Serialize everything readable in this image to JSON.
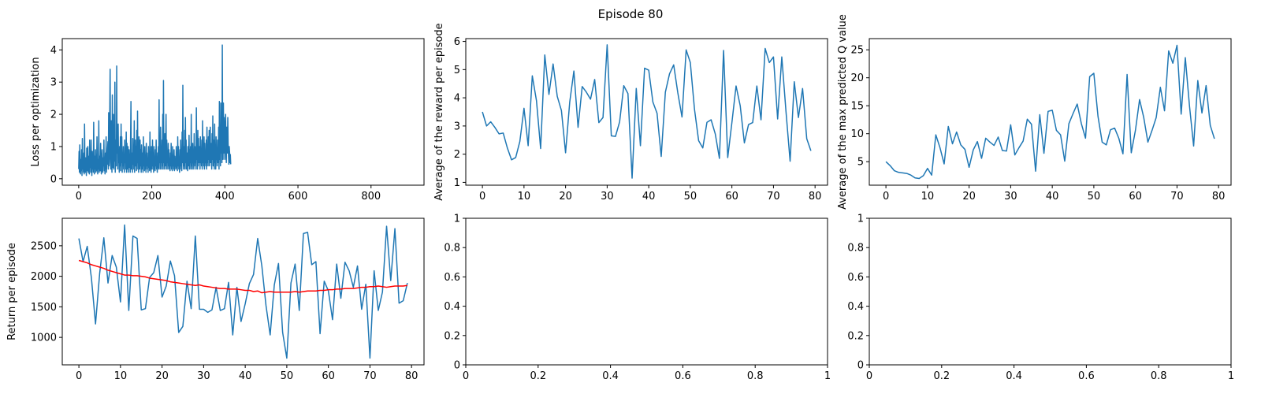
{
  "figure": {
    "suptitle": "Episode 80"
  },
  "colors": {
    "line": "#1f77b4",
    "mean": "#ff0000",
    "axis": "#000000"
  },
  "chart_data": [
    {
      "id": "loss",
      "type": "line",
      "title": "",
      "xlabel": "",
      "ylabel": "Loss per optimization",
      "xlim": [
        -45,
        945
      ],
      "ylim": [
        -0.2,
        4.35
      ],
      "xticks": [
        0,
        200,
        400,
        600,
        800
      ],
      "yticks": [
        0,
        1,
        2,
        3,
        4
      ],
      "grid": false,
      "series": [
        {
          "values": [
            0.3,
            0.85,
            0.2,
            1.05,
            0.4,
            0.15,
            0.6,
            0.25,
            0.9,
            0.1,
            1.25,
            0.3,
            0.55,
            0.2,
            0.8,
            0.15,
            1.7,
            0.4,
            0.2,
            0.65,
            0.3,
            0.1,
            0.95,
            0.25,
            0.5,
            1.0,
            0.2,
            0.7,
            0.3,
            0.15,
            1.2,
            0.35,
            0.6,
            0.2,
            1.2,
            0.4,
            0.1,
            0.85,
            0.3,
            0.55,
            0.2,
            1.75,
            0.45,
            0.15,
            0.7,
            0.3,
            0.9,
            0.2,
            0.5,
            0.25,
            1.3,
            0.4,
            0.15,
            0.6,
            0.3,
            1.8,
            0.2,
            0.45,
            0.7,
            0.25,
            1.1,
            0.35,
            0.15,
            0.55,
            0.9,
            0.3,
            0.2,
            0.65,
            0.4,
            1.2,
            0.25,
            0.5,
            0.15,
            0.8,
            0.3,
            1.3,
            0.2,
            0.6,
            0.45,
            0.95,
            1.15,
            0.3,
            2.05,
            0.4,
            0.7,
            2.05,
            3.4,
            0.5,
            0.3,
            1.8,
            0.6,
            0.2,
            2.6,
            0.35,
            0.8,
            2.0,
            0.3,
            1.45,
            0.55,
            3.0,
            0.2,
            0.7,
            1.2,
            0.4,
            3.5,
            0.8,
            1.6,
            0.3,
            1.7,
            0.5,
            0.9,
            0.2,
            1.0,
            0.4,
            1.3,
            0.25,
            1.7,
            0.5,
            1.3,
            0.2,
            0.8,
            0.4,
            1.0,
            0.3,
            0.7,
            0.2,
            1.2,
            0.5,
            0.9,
            0.3,
            1.45,
            0.2,
            1.1,
            0.6,
            0.3,
            1.0,
            0.2,
            0.7,
            0.9,
            0.35,
            0.5,
            0.2,
            1.3,
            2.4,
            0.3,
            0.8,
            0.6,
            0.2,
            1.25,
            0.45,
            0.9,
            0.3,
            1.8,
            0.2,
            0.7,
            1.2,
            0.4,
            1.0,
            0.25,
            1.5,
            0.3,
            2.1,
            0.5,
            0.8,
            0.2,
            1.3,
            0.6,
            0.3,
            1.2,
            0.4,
            0.9,
            0.2,
            1.05,
            0.5,
            0.3,
            0.8,
            0.2,
            1.3,
            0.4,
            0.7,
            0.25,
            1.0,
            0.3,
            0.6,
            0.2,
            1.1,
            0.4,
            0.8,
            0.3,
            0.5,
            0.2,
            1.0,
            0.35,
            0.7,
            0.25,
            1.45,
            0.3,
            0.6,
            0.2,
            1.0,
            0.5,
            0.3,
            1.2,
            0.4,
            0.8,
            0.2,
            1.0,
            0.3,
            0.6,
            0.25,
            0.9,
            0.4,
            1.2,
            0.3,
            0.5,
            0.2,
            0.8,
            0.35,
            1.0,
            0.3,
            2.45,
            0.5,
            0.8,
            0.3,
            1.6,
            0.5,
            1.0,
            0.3,
            1.2,
            0.4,
            2.0,
            0.3,
            3.05,
            0.5,
            1.0,
            0.3,
            1.4,
            0.4,
            0.8,
            2.0,
            0.3,
            1.2,
            0.5,
            0.8,
            0.3,
            1.1,
            0.4,
            0.9,
            0.3,
            0.6,
            0.25,
            0.8,
            0.4,
            1.1,
            0.3,
            0.7,
            0.25,
            1.0,
            0.4,
            0.6,
            0.3,
            0.9,
            0.25,
            0.7,
            0.4,
            0.5,
            0.3,
            1.0,
            0.35,
            0.6,
            0.25,
            1.3,
            0.4,
            1.0,
            0.3,
            0.5,
            0.2,
            0.9,
            0.3,
            1.2,
            0.4,
            0.7,
            0.25,
            1.45,
            0.5,
            2.9,
            0.6,
            0.3,
            1.0,
            0.4,
            1.5,
            0.3,
            1.9,
            0.5,
            1.2,
            0.3,
            0.8,
            0.6,
            0.25,
            1.0,
            0.4,
            0.7,
            1.35,
            0.3,
            0.9,
            0.5,
            1.0,
            0.3,
            2.0,
            0.4,
            0.8,
            0.3,
            1.1,
            0.5,
            0.7,
            0.3,
            1.4,
            0.4,
            1.0,
            0.5,
            0.8,
            0.3,
            2.2,
            0.6,
            1.0,
            0.3,
            1.5,
            0.4,
            1.25,
            0.5,
            0.8,
            1.0,
            0.3,
            1.3,
            0.5,
            0.9,
            0.4,
            1.2,
            0.3,
            1.8,
            0.5,
            1.0,
            0.4,
            1.3,
            0.3,
            1.1,
            0.5,
            0.8,
            0.4,
            1.2,
            0.3,
            1.6,
            0.5,
            0.9,
            0.4,
            1.3,
            0.6,
            1.5,
            0.4,
            0.9,
            1.6,
            0.5,
            1.1,
            0.8,
            0.3,
            1.4,
            0.6,
            1.95,
            0.4,
            1.2,
            0.7,
            0.3,
            1.7,
            0.5,
            1.0,
            0.3,
            1.3,
            0.6,
            0.9,
            0.4,
            1.2,
            0.8,
            0.5,
            1.6,
            0.3,
            2.4,
            0.6,
            1.0,
            0.4,
            2.35,
            0.8,
            1.6,
            0.5,
            4.15,
            1.0,
            0.6,
            2.35,
            0.8,
            1.9,
            1.2,
            0.6,
            1.6,
            2.0,
            1.1,
            0.5,
            1.6,
            1.0,
            0.8,
            1.9,
            1.1,
            0.7,
            0.45,
            1.0,
            0.8,
            0.5,
            0.75,
            0.45
          ]
        }
      ]
    },
    {
      "id": "avg_reward",
      "type": "line",
      "title": "",
      "xlabel": "",
      "ylabel": "Average of the reward per episode",
      "xlim": [
        -4,
        83
      ],
      "ylim": [
        0.9,
        6.1
      ],
      "xticks": [
        0,
        10,
        20,
        30,
        40,
        50,
        60,
        70,
        80
      ],
      "yticks": [
        1,
        2,
        3,
        4,
        5,
        6
      ],
      "grid": false,
      "series": [
        {
          "values": [
            3.5,
            3.0,
            3.15,
            2.95,
            2.72,
            2.75,
            2.22,
            1.8,
            1.88,
            2.45,
            3.63,
            2.3,
            4.78,
            3.9,
            2.2,
            5.52,
            4.12,
            5.2,
            4.05,
            3.55,
            2.05,
            3.85,
            4.95,
            2.95,
            4.4,
            4.2,
            3.95,
            4.65,
            3.12,
            3.3,
            5.88,
            2.65,
            2.63,
            3.15,
            4.43,
            4.15,
            1.15,
            4.33,
            2.3,
            5.05,
            4.98,
            3.85,
            3.45,
            1.92,
            4.2,
            4.85,
            5.17,
            4.17,
            3.32,
            5.7,
            5.25,
            3.6,
            2.48,
            2.22,
            3.13,
            3.22,
            2.72,
            1.85,
            5.68,
            1.88,
            3.12,
            4.42,
            3.72,
            2.4,
            3.05,
            3.12,
            4.42,
            3.22,
            5.75,
            5.25,
            5.45,
            3.25,
            5.45,
            3.53,
            1.75,
            4.57,
            3.3,
            4.33,
            2.55,
            2.12
          ]
        }
      ]
    },
    {
      "id": "max_q",
      "type": "line",
      "title": "",
      "xlabel": "",
      "ylabel": "Average of the max predicted Q value",
      "xlim": [
        -4,
        83
      ],
      "ylim": [
        0.8,
        27
      ],
      "xticks": [
        0,
        10,
        20,
        30,
        40,
        50,
        60,
        70,
        80
      ],
      "yticks": [
        5,
        10,
        15,
        20,
        25
      ],
      "grid": false,
      "series": [
        {
          "values": [
            5.0,
            4.3,
            3.4,
            3.1,
            3.0,
            2.9,
            2.6,
            2.1,
            2.0,
            2.5,
            3.8,
            2.6,
            9.8,
            7.5,
            4.6,
            11.3,
            8.2,
            10.3,
            8.0,
            7.2,
            4.0,
            7.1,
            8.6,
            5.6,
            9.2,
            8.5,
            7.9,
            9.4,
            7.0,
            6.9,
            11.6,
            6.2,
            7.5,
            8.7,
            12.6,
            11.7,
            3.3,
            13.4,
            6.5,
            14.0,
            14.2,
            10.6,
            9.8,
            5.1,
            11.8,
            13.6,
            15.3,
            11.8,
            9.2,
            20.2,
            20.8,
            13.1,
            8.5,
            8.0,
            10.7,
            11.0,
            9.2,
            6.4,
            20.6,
            6.6,
            10.6,
            16.1,
            12.9,
            8.5,
            10.6,
            12.9,
            18.3,
            14.1,
            24.8,
            22.6,
            25.8,
            13.5,
            23.6,
            15.0,
            7.8,
            19.5,
            13.7,
            18.6,
            11.5,
            9.1
          ]
        }
      ]
    },
    {
      "id": "return",
      "type": "line",
      "title": "",
      "xlabel": "",
      "ylabel": "Return per episode",
      "xlim": [
        -4,
        83
      ],
      "ylim": [
        550,
        2950
      ],
      "xticks": [
        0,
        10,
        20,
        30,
        40,
        50,
        60,
        70,
        80
      ],
      "yticks": [
        1000,
        1500,
        2000,
        2500
      ],
      "grid": false,
      "series": [
        {
          "values": [
            2620,
            2240,
            2490,
            1980,
            1220,
            2050,
            2630,
            1890,
            2340,
            2150,
            1580,
            2840,
            1440,
            2660,
            2620,
            1450,
            1470,
            1980,
            2060,
            2340,
            1660,
            1840,
            2250,
            2010,
            1080,
            1180,
            1920,
            1470,
            2660,
            1460,
            1460,
            1410,
            1450,
            1820,
            1440,
            1470,
            1900,
            1040,
            1820,
            1260,
            1550,
            1880,
            2030,
            2620,
            2170,
            1520,
            1040,
            1860,
            2210,
            1080,
            660,
            1890,
            2200,
            1440,
            2700,
            2720,
            2190,
            2240,
            1060,
            1920,
            1760,
            1290,
            2200,
            1640,
            2230,
            2090,
            1820,
            2170,
            1460,
            1870,
            660,
            2090,
            1440,
            1740,
            2820,
            1930,
            2780,
            1560,
            1600,
            1890
          ]
        },
        {
          "values": [
            2260,
            2240,
            2220,
            2190,
            2170,
            2150,
            2130,
            2100,
            2080,
            2060,
            2040,
            2020,
            2020,
            2010,
            2010,
            2000,
            1990,
            1970,
            1960,
            1950,
            1940,
            1930,
            1910,
            1900,
            1890,
            1880,
            1870,
            1860,
            1850,
            1860,
            1840,
            1830,
            1820,
            1810,
            1800,
            1800,
            1790,
            1790,
            1790,
            1780,
            1770,
            1770,
            1750,
            1760,
            1730,
            1740,
            1750,
            1740,
            1740,
            1740,
            1740,
            1740,
            1750,
            1740,
            1750,
            1760,
            1760,
            1760,
            1770,
            1770,
            1780,
            1780,
            1790,
            1790,
            1800,
            1800,
            1800,
            1810,
            1820,
            1820,
            1830,
            1830,
            1840,
            1830,
            1820,
            1830,
            1840,
            1840,
            1840,
            1850
          ]
        }
      ]
    },
    {
      "id": "empty_1",
      "type": "line",
      "title": "",
      "xlabel": "",
      "ylabel": "",
      "xlim": [
        0,
        1
      ],
      "ylim": [
        0,
        1
      ],
      "xticks": [
        0,
        0.2,
        0.4,
        0.6,
        0.8,
        1
      ],
      "yticks": [
        0,
        0.2,
        0.4,
        0.6,
        0.8,
        1
      ],
      "grid": false,
      "series": []
    },
    {
      "id": "empty_2",
      "type": "line",
      "title": "",
      "xlabel": "",
      "ylabel": "",
      "xlim": [
        0,
        1
      ],
      "ylim": [
        0,
        1
      ],
      "xticks": [
        0,
        0.2,
        0.4,
        0.6,
        0.8,
        1
      ],
      "yticks": [
        0,
        0.2,
        0.4,
        0.6,
        0.8,
        1
      ],
      "grid": false,
      "series": []
    }
  ]
}
